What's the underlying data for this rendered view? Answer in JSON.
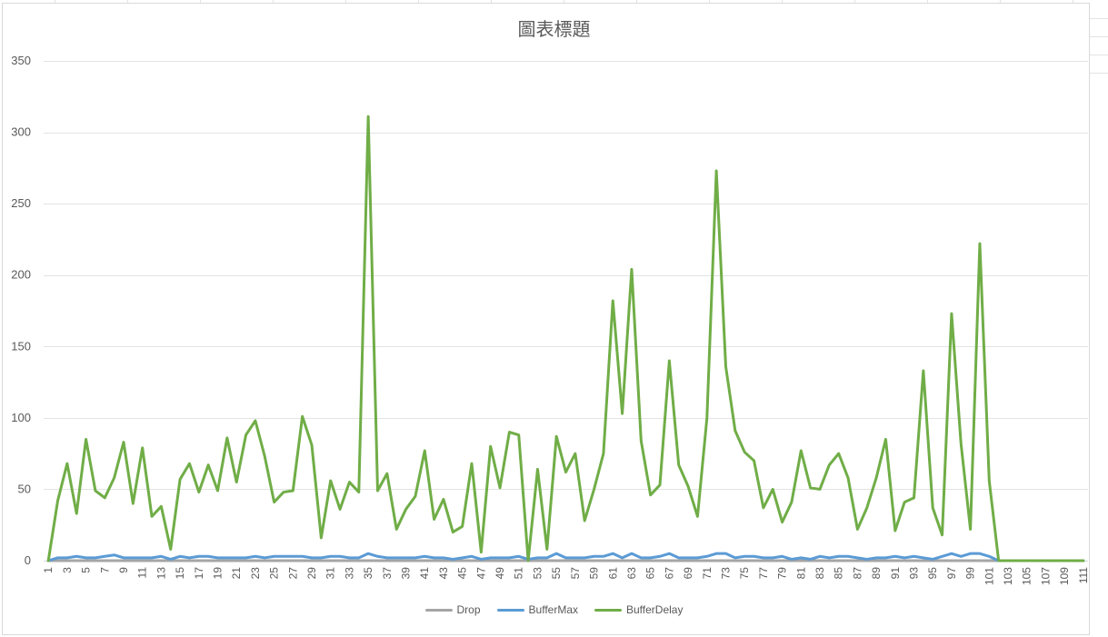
{
  "chart_data": {
    "type": "line",
    "title": "圖表標題",
    "xlabel": "",
    "ylabel": "",
    "ylim": [
      0,
      350
    ],
    "yticks": [
      0,
      50,
      100,
      150,
      200,
      250,
      300,
      350
    ],
    "x": [
      1,
      2,
      3,
      4,
      5,
      6,
      7,
      8,
      9,
      10,
      11,
      12,
      13,
      14,
      15,
      16,
      17,
      18,
      19,
      20,
      21,
      22,
      23,
      24,
      25,
      26,
      27,
      28,
      29,
      30,
      31,
      32,
      33,
      34,
      35,
      36,
      37,
      38,
      39,
      40,
      41,
      42,
      43,
      44,
      45,
      46,
      47,
      48,
      49,
      50,
      51,
      52,
      53,
      54,
      55,
      56,
      57,
      58,
      59,
      60,
      61,
      62,
      63,
      64,
      65,
      66,
      67,
      68,
      69,
      70,
      71,
      72,
      73,
      74,
      75,
      76,
      77,
      78,
      79,
      80,
      81,
      82,
      83,
      84,
      85,
      86,
      87,
      88,
      89,
      90,
      91,
      92,
      93,
      94,
      95,
      96,
      97,
      98,
      99,
      100,
      101,
      102,
      103,
      104,
      105,
      106,
      107,
      108,
      109,
      110,
      111
    ],
    "xtick_labels": [
      "1",
      "3",
      "5",
      "7",
      "9",
      "11",
      "13",
      "15",
      "17",
      "19",
      "21",
      "23",
      "25",
      "27",
      "29",
      "31",
      "33",
      "35",
      "37",
      "39",
      "41",
      "43",
      "45",
      "47",
      "49",
      "51",
      "53",
      "55",
      "57",
      "59",
      "61",
      "63",
      "65",
      "67",
      "69",
      "71",
      "73",
      "75",
      "77",
      "79",
      "81",
      "83",
      "85",
      "87",
      "89",
      "91",
      "93",
      "95",
      "97",
      "99",
      "101",
      "103",
      "105",
      "107",
      "109",
      "111"
    ],
    "grid": true,
    "legend_position": "bottom",
    "series": [
      {
        "name": "Drop",
        "color": "#a5a5a5",
        "values": [
          0,
          0,
          0,
          0,
          0,
          0,
          0,
          0,
          0,
          0,
          0,
          0,
          0,
          0,
          0,
          0,
          0,
          0,
          0,
          0,
          0,
          0,
          0,
          0,
          0,
          0,
          0,
          0,
          0,
          0,
          0,
          0,
          0,
          0,
          0,
          0,
          0,
          0,
          0,
          0,
          0,
          0,
          0,
          0,
          0,
          0,
          0,
          0,
          0,
          0,
          0,
          0,
          0,
          0,
          0,
          0,
          0,
          0,
          0,
          0,
          0,
          0,
          0,
          0,
          0,
          0,
          0,
          0,
          0,
          0,
          0,
          0,
          0,
          0,
          0,
          0,
          0,
          0,
          0,
          0,
          0,
          0,
          0,
          0,
          0,
          0,
          0,
          0,
          0,
          0,
          0,
          0,
          0,
          0,
          0,
          0,
          0,
          0,
          0,
          0,
          0,
          0,
          0,
          0,
          0,
          0,
          0,
          0,
          0,
          0,
          0
        ]
      },
      {
        "name": "BufferMax",
        "color": "#5b9bd5",
        "values": [
          0,
          2,
          2,
          3,
          2,
          2,
          3,
          4,
          2,
          2,
          2,
          2,
          3,
          1,
          3,
          2,
          3,
          3,
          2,
          2,
          2,
          2,
          3,
          2,
          3,
          3,
          3,
          3,
          2,
          2,
          3,
          3,
          2,
          2,
          5,
          3,
          2,
          2,
          2,
          2,
          3,
          2,
          2,
          1,
          2,
          3,
          1,
          2,
          2,
          2,
          3,
          1,
          2,
          2,
          5,
          2,
          2,
          2,
          3,
          3,
          5,
          2,
          5,
          2,
          2,
          3,
          5,
          2,
          2,
          2,
          3,
          5,
          5,
          2,
          3,
          3,
          2,
          2,
          3,
          1,
          2,
          1,
          3,
          2,
          3,
          3,
          2,
          1,
          2,
          2,
          3,
          2,
          3,
          2,
          1,
          3,
          5,
          3,
          5,
          5,
          3,
          0,
          0,
          0,
          0,
          0,
          0,
          0,
          0,
          0,
          0
        ]
      },
      {
        "name": "BufferDelay",
        "color": "#70ad47",
        "values": [
          0,
          42,
          68,
          33,
          85,
          49,
          44,
          58,
          83,
          40,
          79,
          31,
          38,
          8,
          57,
          68,
          48,
          67,
          49,
          86,
          55,
          88,
          98,
          73,
          41,
          48,
          49,
          101,
          81,
          16,
          56,
          36,
          55,
          48,
          311,
          49,
          61,
          22,
          36,
          45,
          77,
          29,
          43,
          20,
          24,
          68,
          6,
          80,
          51,
          90,
          88,
          0,
          64,
          8,
          87,
          62,
          75,
          28,
          50,
          75,
          182,
          103,
          204,
          84,
          46,
          53,
          140,
          67,
          52,
          31,
          100,
          273,
          136,
          91,
          76,
          70,
          37,
          50,
          27,
          41,
          77,
          51,
          50,
          67,
          75,
          58,
          22,
          37,
          58,
          85,
          21,
          41,
          44,
          133,
          37,
          18,
          173,
          82,
          22,
          222,
          56,
          0,
          0,
          0,
          0,
          0,
          0,
          0,
          0,
          0,
          0
        ]
      }
    ]
  }
}
